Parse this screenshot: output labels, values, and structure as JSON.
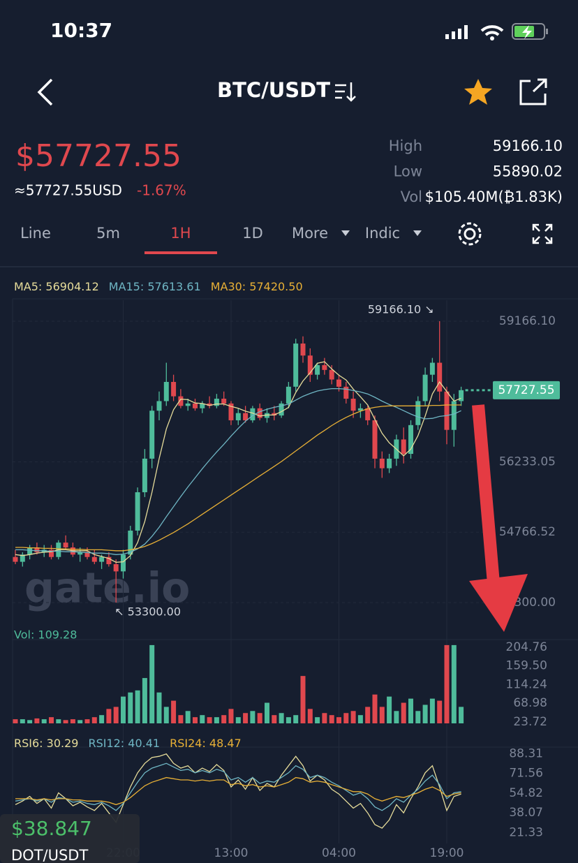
{
  "status_bar": {
    "time": "10:37"
  },
  "header": {
    "title": "BTC/USDT"
  },
  "ticker": {
    "price": "$57727.55",
    "usd": "≈57727.55USD",
    "change": "-1.67%",
    "stats": [
      {
        "label": "High",
        "value": "59166.10"
      },
      {
        "label": "Low",
        "value": "55890.02"
      },
      {
        "label": "Vol",
        "value": "$105.40M(₿1.83K)"
      }
    ]
  },
  "tabs": {
    "items": [
      "Line",
      "5m",
      "1H",
      "1D",
      "More",
      "Indic"
    ],
    "active": "1H"
  },
  "overlay": {
    "price": "$38.847",
    "pair": "DOT/USDT"
  },
  "watermark": "gate.io",
  "chart_data": [
    {
      "type": "candlestick",
      "up_color": "#4fbc9b",
      "down_color": "#e0484e",
      "ylim": [
        52834,
        59603
      ],
      "yticks": [
        {
          "value": 59166.1,
          "label": "59166.10"
        },
        56233.05,
        54766.52,
        {
          "value": 53300,
          "label": "53300.00"
        }
      ],
      "annotations": [
        "59166.10 ↘",
        "↖ 53300.00"
      ],
      "last_price_label": "57727.55",
      "last_price": 57727.55,
      "candles": [
        [
          54250,
          54400,
          54100,
          54150
        ],
        [
          54150,
          54350,
          54050,
          54300
        ],
        [
          54300,
          54500,
          54200,
          54450
        ],
        [
          54450,
          54550,
          54300,
          54350
        ],
        [
          54350,
          54500,
          54250,
          54400
        ],
        [
          54400,
          54500,
          54200,
          54250
        ],
        [
          54250,
          54600,
          54200,
          54550
        ],
        [
          54550,
          54700,
          54400,
          54450
        ],
        [
          54450,
          54550,
          54250,
          54300
        ],
        [
          54300,
          54450,
          54150,
          54350
        ],
        [
          54350,
          54450,
          54200,
          54250
        ],
        [
          54250,
          54400,
          54100,
          54150
        ],
        [
          54150,
          54300,
          54000,
          54250
        ],
        [
          54250,
          54350,
          54050,
          54100
        ],
        [
          54100,
          54200,
          53300,
          53950
        ],
        [
          53950,
          54400,
          53800,
          54300
        ],
        [
          54300,
          54900,
          54200,
          54800
        ],
        [
          54800,
          55700,
          54700,
          55600
        ],
        [
          55600,
          56500,
          55500,
          56300
        ],
        [
          56300,
          57400,
          56100,
          57300
        ],
        [
          57300,
          57700,
          57100,
          57500
        ],
        [
          57500,
          58300,
          57400,
          57900
        ],
        [
          57900,
          58050,
          57500,
          57600
        ],
        [
          57600,
          57750,
          57350,
          57400
        ],
        [
          57400,
          57550,
          57300,
          57450
        ],
        [
          57450,
          57550,
          57300,
          57350
        ],
        [
          57350,
          57500,
          57250,
          57450
        ],
        [
          57450,
          57600,
          57350,
          57400
        ],
        [
          57400,
          57650,
          57350,
          57550
        ],
        [
          57550,
          57700,
          57400,
          57450
        ],
        [
          57450,
          57500,
          57000,
          57100
        ],
        [
          57100,
          57350,
          57000,
          57250
        ],
        [
          57250,
          57400,
          57050,
          57100
        ],
        [
          57100,
          57400,
          57050,
          57350
        ],
        [
          57350,
          57450,
          57100,
          57150
        ],
        [
          57150,
          57350,
          57050,
          57250
        ],
        [
          57250,
          57400,
          57100,
          57200
        ],
        [
          57200,
          57500,
          57150,
          57450
        ],
        [
          57450,
          57900,
          57350,
          57800
        ],
        [
          57800,
          58800,
          57700,
          58700
        ],
        [
          58700,
          58850,
          58300,
          58450
        ],
        [
          58450,
          58600,
          57900,
          58050
        ],
        [
          58050,
          58300,
          57950,
          58250
        ],
        [
          58250,
          58400,
          58050,
          58150
        ],
        [
          58150,
          58250,
          57850,
          57950
        ],
        [
          57950,
          58050,
          57700,
          57800
        ],
        [
          57800,
          57900,
          57450,
          57550
        ],
        [
          57550,
          57700,
          57150,
          57300
        ],
        [
          57300,
          57450,
          57150,
          57350
        ],
        [
          57350,
          57400,
          57000,
          57100
        ],
        [
          57100,
          57200,
          56100,
          56300
        ],
        [
          56300,
          56450,
          55900,
          56100
        ],
        [
          56100,
          56400,
          56000,
          56300
        ],
        [
          56300,
          56800,
          56150,
          56700
        ],
        [
          56700,
          56950,
          56200,
          56400
        ],
        [
          56400,
          57100,
          56300,
          57000
        ],
        [
          57000,
          57600,
          56900,
          57500
        ],
        [
          57500,
          58200,
          57400,
          58050
        ],
        [
          58050,
          58400,
          57900,
          58300
        ],
        [
          58300,
          59166.1,
          57500,
          57700
        ],
        [
          57700,
          57800,
          56600,
          56900
        ],
        [
          56900,
          57650,
          56550,
          57500
        ],
        [
          57500,
          57800,
          57400,
          57727.55
        ]
      ],
      "series": [
        {
          "name": "MA5: 56904.12",
          "color": "#e6dc9a",
          "values": [
            54300,
            54280,
            54300,
            54330,
            54350,
            54360,
            54400,
            54400,
            54380,
            54380,
            54380,
            54300,
            54260,
            54220,
            54140,
            54150,
            54280,
            54550,
            54990,
            55600,
            56300,
            56920,
            57320,
            57540,
            57530,
            57460,
            57450,
            57410,
            57440,
            57440,
            57390,
            57350,
            57290,
            57250,
            57190,
            57210,
            57210,
            57280,
            57370,
            57680,
            57920,
            58090,
            58290,
            58320,
            58170,
            58040,
            57940,
            57750,
            57590,
            57420,
            57120,
            56830,
            56630,
            56500,
            56360,
            56500,
            56780,
            57190,
            57650,
            57900,
            57700,
            57500,
            57560
          ]
        },
        {
          "name": "MA15: 57613.61",
          "color": "#6fb6c4",
          "values": [
            54400,
            54400,
            54390,
            54380,
            54380,
            54370,
            54370,
            54360,
            54360,
            54350,
            54340,
            54330,
            54330,
            54320,
            54300,
            54310,
            54350,
            54420,
            54520,
            54680,
            54870,
            55090,
            55300,
            55510,
            55710,
            55900,
            56090,
            56270,
            56440,
            56600,
            56770,
            56930,
            57080,
            57200,
            57280,
            57330,
            57370,
            57400,
            57440,
            57520,
            57600,
            57660,
            57710,
            57740,
            57760,
            57760,
            57750,
            57720,
            57690,
            57650,
            57580,
            57500,
            57430,
            57370,
            57300,
            57230,
            57170,
            57130,
            57140,
            57180,
            57200,
            57230,
            57300
          ]
        },
        {
          "name": "MA30: 57420.50",
          "color": "#e8b036",
          "values": [
            54450,
            54450,
            54440,
            54440,
            54430,
            54430,
            54420,
            54420,
            54410,
            54410,
            54400,
            54400,
            54400,
            54390,
            54380,
            54380,
            54400,
            54430,
            54470,
            54530,
            54600,
            54680,
            54760,
            54850,
            54940,
            55040,
            55140,
            55240,
            55340,
            55440,
            55540,
            55640,
            55740,
            55840,
            55940,
            56040,
            56140,
            56240,
            56350,
            56460,
            56570,
            56680,
            56790,
            56890,
            56990,
            57080,
            57160,
            57230,
            57290,
            57340,
            57370,
            57390,
            57400,
            57400,
            57400,
            57400,
            57400,
            57400,
            57410,
            57410,
            57420,
            57420,
            57420
          ]
        }
      ]
    },
    {
      "type": "bar",
      "title": "Vol: 109.28",
      "ylim": [
        20,
        220
      ],
      "yticks": [
        204.76,
        {
          "value": 159.5,
          "label": "159.50"
        },
        114.24,
        68.98,
        23.72
      ],
      "values": [
        30,
        30,
        28,
        32,
        30,
        35,
        30,
        28,
        30,
        28,
        30,
        35,
        40,
        55,
        60,
        85,
        95,
        100,
        130,
        210,
        95,
        60,
        75,
        40,
        50,
        35,
        40,
        35,
        35,
        40,
        55,
        35,
        45,
        50,
        45,
        70,
        40,
        45,
        35,
        40,
        135,
        55,
        35,
        45,
        40,
        35,
        45,
        50,
        40,
        60,
        90,
        60,
        85,
        50,
        70,
        80,
        50,
        65,
        80,
        75,
        210,
        210,
        60
      ]
    },
    {
      "type": "line",
      "ylim": [
        12.02,
        92.65
      ],
      "yticks": [
        88.31,
        71.56,
        54.82,
        38.07,
        21.33
      ],
      "categories": [
        null,
        null,
        null,
        null,
        null,
        null,
        null,
        null,
        null,
        null,
        null,
        null,
        null,
        null,
        null,
        "22:00",
        null,
        null,
        null,
        null,
        null,
        null,
        null,
        null,
        null,
        null,
        null,
        null,
        null,
        null,
        "13:00",
        null,
        null,
        null,
        null,
        null,
        null,
        null,
        null,
        null,
        null,
        null,
        null,
        null,
        null,
        "04:00",
        null,
        null,
        null,
        null,
        null,
        null,
        null,
        null,
        null,
        null,
        null,
        null,
        null,
        null,
        "19:00",
        null,
        null
      ],
      "series": [
        {
          "name": "RSI6: 30.29",
          "color": "#e6dc9a",
          "values": [
            45,
            48,
            52,
            46,
            50,
            42,
            55,
            50,
            44,
            47,
            43,
            40,
            46,
            38,
            30,
            45,
            60,
            72,
            80,
            85,
            86,
            88,
            80,
            76,
            78,
            72,
            76,
            73,
            79,
            74,
            60,
            66,
            58,
            68,
            57,
            63,
            60,
            70,
            78,
            86,
            78,
            65,
            70,
            66,
            58,
            54,
            48,
            42,
            46,
            38,
            28,
            25,
            32,
            45,
            38,
            50,
            60,
            72,
            78,
            60,
            40,
            52,
            54
          ]
        },
        {
          "name": "RSI12: 40.41",
          "color": "#6fb6c4",
          "values": [
            48,
            49,
            50,
            48,
            50,
            47,
            51,
            50,
            47,
            48,
            46,
            45,
            47,
            44,
            40,
            46,
            55,
            64,
            72,
            76,
            78,
            80,
            77,
            74,
            75,
            72,
            74,
            72,
            75,
            73,
            66,
            68,
            64,
            68,
            63,
            65,
            64,
            68,
            72,
            78,
            75,
            68,
            70,
            68,
            64,
            61,
            57,
            53,
            55,
            50,
            43,
            40,
            44,
            50,
            47,
            53,
            58,
            65,
            70,
            62,
            50,
            55,
            56
          ]
        },
        {
          "name": "RSI24: 48.47",
          "color": "#e8b036",
          "values": [
            50,
            50,
            50,
            49,
            50,
            49,
            50,
            50,
            49,
            49,
            48,
            48,
            48,
            47,
            45,
            47,
            51,
            56,
            61,
            64,
            66,
            68,
            67,
            66,
            66,
            65,
            66,
            65,
            66,
            66,
            62,
            63,
            61,
            62,
            60,
            61,
            60,
            62,
            64,
            68,
            67,
            64,
            65,
            64,
            62,
            60,
            58,
            56,
            56,
            54,
            50,
            48,
            50,
            52,
            51,
            53,
            55,
            58,
            60,
            57,
            52,
            54,
            55
          ]
        }
      ]
    }
  ]
}
